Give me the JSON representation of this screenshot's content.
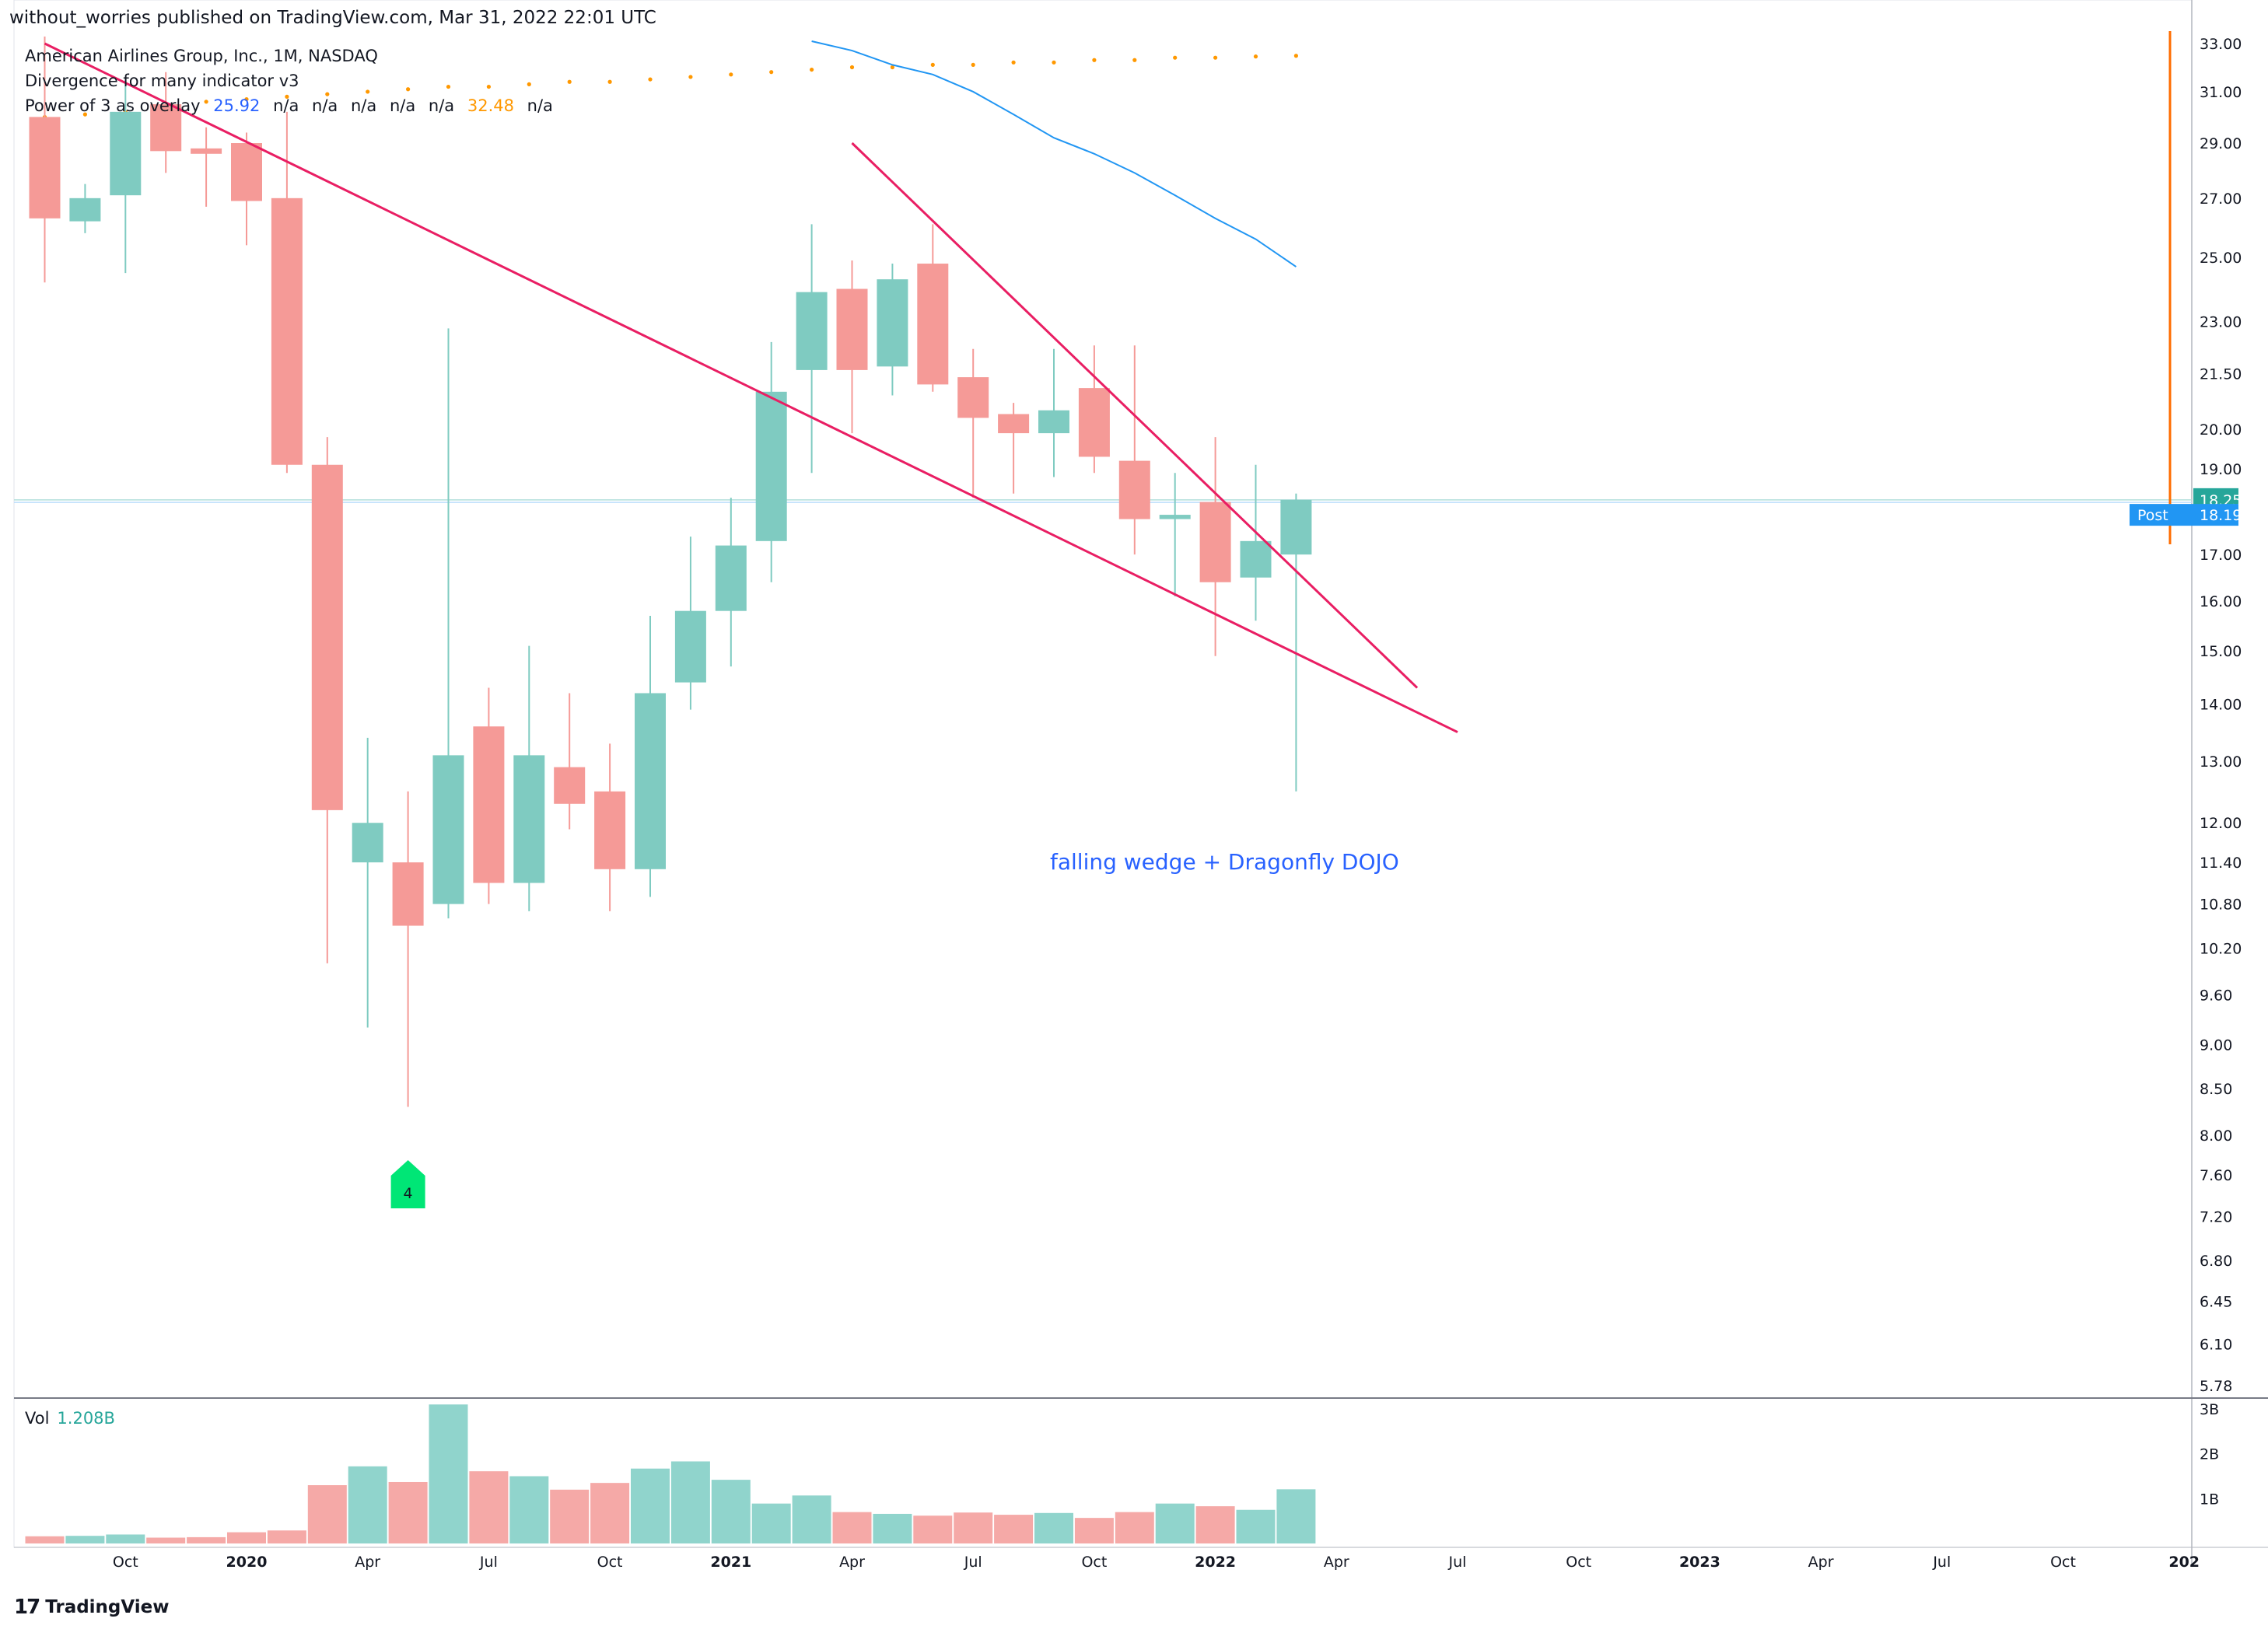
{
  "header": {
    "published": "without_worries published on TradingView.com, Mar 31, 2022 22:01 UTC"
  },
  "legend": {
    "symbol": "American Airlines Group, Inc., 1M, NASDAQ",
    "indicator1": "Divergence for many indicator v3",
    "indicator2": {
      "name": "Power of 3 as overlay",
      "v1": "25.92",
      "v2": "n/a",
      "v3": "n/a",
      "v4": "n/a",
      "v5": "n/a",
      "v6": "n/a",
      "v7": "32.48",
      "v8": "n/a"
    }
  },
  "annotation": "falling wedge + Dragonfly DOJO",
  "signal_label": "4",
  "volume": {
    "label": "Vol",
    "value": "1.208B"
  },
  "footer": {
    "logo": "17",
    "brand": "TradingView"
  },
  "price_tags": {
    "last": "18.25",
    "post_label": "Post",
    "post": "18.19"
  },
  "colors": {
    "up": "#26a69a",
    "down": "#ef5350",
    "trendline": "#e91e63",
    "ma": "#2196f3",
    "dots": "#ff9800",
    "post": "#2196f3",
    "signal": "#00e676"
  },
  "chart_data": {
    "type": "candlestick",
    "title": "American Airlines Group, Inc., 1M, NASDAQ",
    "y_scale": "log",
    "ylim": [
      5.78,
      33.0
    ],
    "y_ticks": [
      33.0,
      31.0,
      29.0,
      27.0,
      25.0,
      23.0,
      21.5,
      20.0,
      19.0,
      18.25,
      17.0,
      16.0,
      15.0,
      14.0,
      13.0,
      12.0,
      11.4,
      10.8,
      10.2,
      9.6,
      9.0,
      8.5,
      8.0,
      7.6,
      7.2,
      6.8,
      6.45,
      6.1,
      5.78
    ],
    "y_tick_labels": [
      "33.00",
      "31.00",
      "29.00",
      "27.00",
      "25.00",
      "23.00",
      "21.50",
      "20.00",
      "19.00",
      "18.25",
      "17.00",
      "16.00",
      "15.00",
      "14.00",
      "13.00",
      "12.00",
      "11.40",
      "10.80",
      "10.20",
      "9.60",
      "9.00",
      "8.50",
      "8.00",
      "7.60",
      "7.20",
      "6.80",
      "6.45",
      "6.10",
      "5.78"
    ],
    "x_tick_labels": [
      "Oct",
      "2020",
      "Apr",
      "Jul",
      "Oct",
      "2021",
      "Apr",
      "Jul",
      "Oct",
      "2022",
      "Apr",
      "Jul",
      "Oct",
      "2023",
      "Apr",
      "Jul",
      "Oct",
      "202"
    ],
    "x_tick_months": [
      "2019-10",
      "2020-01",
      "2020-04",
      "2020-07",
      "2020-10",
      "2021-01",
      "2021-04",
      "2021-07",
      "2021-10",
      "2022-01",
      "2022-04",
      "2022-07",
      "2022-10",
      "2023-01",
      "2023-04",
      "2023-07",
      "2023-10",
      "2024-01"
    ],
    "candles": [
      {
        "date": "2019-08",
        "open": 30.0,
        "high": 33.5,
        "low": 24.2,
        "close": 26.3
      },
      {
        "date": "2019-09",
        "open": 26.2,
        "high": 27.5,
        "low": 25.8,
        "close": 27.0
      },
      {
        "date": "2019-10",
        "open": 27.1,
        "high": 31.5,
        "low": 24.5,
        "close": 30.2
      },
      {
        "date": "2019-11",
        "open": 30.5,
        "high": 31.8,
        "low": 27.9,
        "close": 28.7
      },
      {
        "date": "2019-12",
        "open": 28.8,
        "high": 29.6,
        "low": 26.7,
        "close": 28.6
      },
      {
        "date": "2020-01",
        "open": 29.0,
        "high": 29.4,
        "low": 25.4,
        "close": 26.9
      },
      {
        "date": "2020-02",
        "open": 27.0,
        "high": 30.2,
        "low": 18.9,
        "close": 19.1
      },
      {
        "date": "2020-03",
        "open": 19.1,
        "high": 19.8,
        "low": 10.0,
        "close": 12.2
      },
      {
        "date": "2020-04",
        "open": 11.4,
        "high": 13.4,
        "low": 9.2,
        "close": 12.0
      },
      {
        "date": "2020-05",
        "open": 11.4,
        "high": 12.5,
        "low": 8.3,
        "close": 10.5
      },
      {
        "date": "2020-06",
        "open": 10.8,
        "high": 22.8,
        "low": 10.6,
        "close": 13.1
      },
      {
        "date": "2020-07",
        "open": 13.6,
        "high": 14.3,
        "low": 10.8,
        "close": 11.1
      },
      {
        "date": "2020-08",
        "open": 11.1,
        "high": 15.1,
        "low": 10.7,
        "close": 13.1
      },
      {
        "date": "2020-09",
        "open": 12.9,
        "high": 14.2,
        "low": 11.9,
        "close": 12.3
      },
      {
        "date": "2020-10",
        "open": 12.5,
        "high": 13.3,
        "low": 10.7,
        "close": 11.3
      },
      {
        "date": "2020-11",
        "open": 11.3,
        "high": 15.7,
        "low": 10.9,
        "close": 14.2
      },
      {
        "date": "2020-12",
        "open": 14.4,
        "high": 17.4,
        "low": 13.9,
        "close": 15.8
      },
      {
        "date": "2021-01",
        "open": 15.8,
        "high": 18.3,
        "low": 14.7,
        "close": 17.2
      },
      {
        "date": "2021-02",
        "open": 17.3,
        "high": 22.4,
        "low": 16.4,
        "close": 21.0
      },
      {
        "date": "2021-03",
        "open": 21.6,
        "high": 26.1,
        "low": 18.9,
        "close": 23.9
      },
      {
        "date": "2021-04",
        "open": 24.0,
        "high": 24.9,
        "low": 19.9,
        "close": 21.6
      },
      {
        "date": "2021-05",
        "open": 21.7,
        "high": 24.8,
        "low": 20.9,
        "close": 24.3
      },
      {
        "date": "2021-06",
        "open": 24.8,
        "high": 26.1,
        "low": 21.0,
        "close": 21.2
      },
      {
        "date": "2021-07",
        "open": 21.4,
        "high": 22.2,
        "low": 18.3,
        "close": 20.3
      },
      {
        "date": "2021-08",
        "open": 20.4,
        "high": 20.7,
        "low": 18.4,
        "close": 19.9
      },
      {
        "date": "2021-09",
        "open": 19.9,
        "high": 22.2,
        "low": 18.8,
        "close": 20.5
      },
      {
        "date": "2021-10",
        "open": 21.1,
        "high": 22.3,
        "low": 18.9,
        "close": 19.3
      },
      {
        "date": "2021-11",
        "open": 19.2,
        "high": 22.3,
        "low": 17.0,
        "close": 17.8
      },
      {
        "date": "2021-12",
        "open": 17.8,
        "high": 18.9,
        "low": 16.1,
        "close": 17.9
      },
      {
        "date": "2022-01",
        "open": 18.2,
        "high": 19.8,
        "low": 14.9,
        "close": 16.4
      },
      {
        "date": "2022-02",
        "open": 16.5,
        "high": 19.1,
        "low": 15.6,
        "close": 17.3
      },
      {
        "date": "2022-03",
        "open": 17.0,
        "high": 18.4,
        "low": 12.5,
        "close": 18.25
      }
    ],
    "volume": {
      "ylim": [
        0,
        3000000000
      ],
      "y_tick_labels": [
        "3B",
        "2B",
        "1B"
      ],
      "values": [
        {
          "date": "2019-08",
          "v": 160000000,
          "up": false
        },
        {
          "date": "2019-09",
          "v": 170000000,
          "up": true
        },
        {
          "date": "2019-10",
          "v": 200000000,
          "up": true
        },
        {
          "date": "2019-11",
          "v": 130000000,
          "up": false
        },
        {
          "date": "2019-12",
          "v": 140000000,
          "up": false
        },
        {
          "date": "2020-01",
          "v": 250000000,
          "up": false
        },
        {
          "date": "2020-02",
          "v": 290000000,
          "up": false
        },
        {
          "date": "2020-03",
          "v": 1300000000,
          "up": false
        },
        {
          "date": "2020-04",
          "v": 1720000000,
          "up": true
        },
        {
          "date": "2020-05",
          "v": 1370000000,
          "up": false
        },
        {
          "date": "2020-06",
          "v": 3100000000,
          "up": true
        },
        {
          "date": "2020-07",
          "v": 1610000000,
          "up": false
        },
        {
          "date": "2020-08",
          "v": 1500000000,
          "up": true
        },
        {
          "date": "2020-09",
          "v": 1200000000,
          "up": false
        },
        {
          "date": "2020-10",
          "v": 1350000000,
          "up": false
        },
        {
          "date": "2020-11",
          "v": 1670000000,
          "up": true
        },
        {
          "date": "2020-12",
          "v": 1830000000,
          "up": true
        },
        {
          "date": "2021-01",
          "v": 1420000000,
          "up": true
        },
        {
          "date": "2021-02",
          "v": 890000000,
          "up": true
        },
        {
          "date": "2021-03",
          "v": 1070000000,
          "up": true
        },
        {
          "date": "2021-04",
          "v": 700000000,
          "up": false
        },
        {
          "date": "2021-05",
          "v": 660000000,
          "up": true
        },
        {
          "date": "2021-06",
          "v": 620000000,
          "up": false
        },
        {
          "date": "2021-07",
          "v": 690000000,
          "up": false
        },
        {
          "date": "2021-08",
          "v": 640000000,
          "up": false
        },
        {
          "date": "2021-09",
          "v": 680000000,
          "up": true
        },
        {
          "date": "2021-10",
          "v": 570000000,
          "up": false
        },
        {
          "date": "2021-11",
          "v": 700000000,
          "up": false
        },
        {
          "date": "2021-12",
          "v": 890000000,
          "up": true
        },
        {
          "date": "2022-01",
          "v": 830000000,
          "up": false
        },
        {
          "date": "2022-02",
          "v": 750000000,
          "up": true
        },
        {
          "date": "2022-03",
          "v": 1208000000,
          "up": true
        }
      ]
    },
    "moving_average": [
      {
        "date": "2021-03",
        "v": 33.1
      },
      {
        "date": "2021-04",
        "v": 32.7
      },
      {
        "date": "2021-05",
        "v": 32.1
      },
      {
        "date": "2021-06",
        "v": 31.7
      },
      {
        "date": "2021-07",
        "v": 31.0
      },
      {
        "date": "2021-08",
        "v": 30.1
      },
      {
        "date": "2021-09",
        "v": 29.2
      },
      {
        "date": "2021-10",
        "v": 28.6
      },
      {
        "date": "2021-11",
        "v": 27.9
      },
      {
        "date": "2021-12",
        "v": 27.1
      },
      {
        "date": "2022-01",
        "v": 26.3
      },
      {
        "date": "2022-02",
        "v": 25.6
      },
      {
        "date": "2022-03",
        "v": 24.7
      }
    ],
    "dots_series": [
      {
        "date": "2019-08",
        "v": 30.0
      },
      {
        "date": "2019-09",
        "v": 30.1
      },
      {
        "date": "2019-10",
        "v": 30.2
      },
      {
        "date": "2019-11",
        "v": 30.4
      },
      {
        "date": "2019-12",
        "v": 30.6
      },
      {
        "date": "2020-01",
        "v": 30.7
      },
      {
        "date": "2020-02",
        "v": 30.8
      },
      {
        "date": "2020-03",
        "v": 30.9
      },
      {
        "date": "2020-04",
        "v": 31.0
      },
      {
        "date": "2020-05",
        "v": 31.1
      },
      {
        "date": "2020-06",
        "v": 31.2
      },
      {
        "date": "2020-07",
        "v": 31.2
      },
      {
        "date": "2020-08",
        "v": 31.3
      },
      {
        "date": "2020-09",
        "v": 31.4
      },
      {
        "date": "2020-10",
        "v": 31.4
      },
      {
        "date": "2020-11",
        "v": 31.5
      },
      {
        "date": "2020-12",
        "v": 31.6
      },
      {
        "date": "2021-01",
        "v": 31.7
      },
      {
        "date": "2021-02",
        "v": 31.8
      },
      {
        "date": "2021-03",
        "v": 31.9
      },
      {
        "date": "2021-04",
        "v": 32.0
      },
      {
        "date": "2021-05",
        "v": 32.0
      },
      {
        "date": "2021-06",
        "v": 32.1
      },
      {
        "date": "2021-07",
        "v": 32.1
      },
      {
        "date": "2021-08",
        "v": 32.2
      },
      {
        "date": "2021-09",
        "v": 32.2
      },
      {
        "date": "2021-10",
        "v": 32.3
      },
      {
        "date": "2021-11",
        "v": 32.3
      },
      {
        "date": "2021-12",
        "v": 32.4
      },
      {
        "date": "2022-01",
        "v": 32.4
      },
      {
        "date": "2022-02",
        "v": 32.45
      },
      {
        "date": "2022-03",
        "v": 32.48
      }
    ],
    "trendlines": [
      {
        "x1": "2019-08",
        "y1": 33.0,
        "x2": "2022-07",
        "y2": 13.5
      },
      {
        "x1": "2021-04",
        "y1": 29.0,
        "x2": "2022-06",
        "y2": 14.3
      }
    ],
    "signal": {
      "date": "2020-05",
      "label": "4"
    },
    "last_price": 18.25,
    "post_price": 18.19
  }
}
